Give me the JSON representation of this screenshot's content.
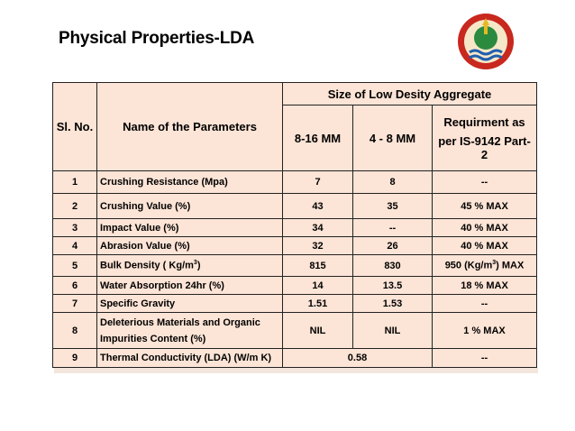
{
  "title": "Physical Properties-LDA",
  "colors": {
    "table_fill": "#fce4d6",
    "logo_outer": "#c8281e",
    "logo_inner": "#2b8a3e"
  },
  "table": {
    "header": {
      "sl_no": "Sl. No.",
      "name": "Name of the Parameters",
      "group": "Size of Low Desity Aggregate",
      "col1": "8-16 MM",
      "col2": "4 - 8 MM",
      "req_line1": "Requirment as",
      "req_line2": "per IS-9142 Part-2"
    },
    "rows": [
      {
        "no": "1",
        "name": "Crushing Resistance (Mpa)",
        "v1": "7",
        "v2": "8",
        "req": "--"
      },
      {
        "no": "2",
        "name": "Crushing Value (%)",
        "v1": "43",
        "v2": "35",
        "req": "45 % MAX"
      },
      {
        "no": "3",
        "name": "Impact Value (%)",
        "v1": "34",
        "v2": "--",
        "req": "40 % MAX"
      },
      {
        "no": "4",
        "name": "Abrasion Value (%)",
        "v1": "32",
        "v2": "26",
        "req": "40 % MAX"
      },
      {
        "no": "5",
        "name": "Bulk Density ( Kg/m",
        "sup": "3",
        "name_tail": ")",
        "v1": "815",
        "v2": "830",
        "req": "950  (Kg/m",
        "req_sup": "3",
        "req_tail": ") MAX"
      },
      {
        "no": "6",
        "name": "Water Absorption 24hr (%)",
        "v1": "14",
        "v2": "13.5",
        "req": "18 % MAX"
      },
      {
        "no": "7",
        "name": "Specific Gravity",
        "v1": "1.51",
        "v2": "1.53",
        "req": "--"
      },
      {
        "no": "8",
        "name_line1": "Deleterious Materials and Organic",
        "name_line2": "Impurities Content (%)",
        "v1": "NIL",
        "v2": "NIL",
        "req": "1 % MAX"
      },
      {
        "no": "9",
        "name": "Thermal Conductivity (LDA) (W/m K)",
        "v12": "0.58",
        "req": "--"
      }
    ]
  }
}
